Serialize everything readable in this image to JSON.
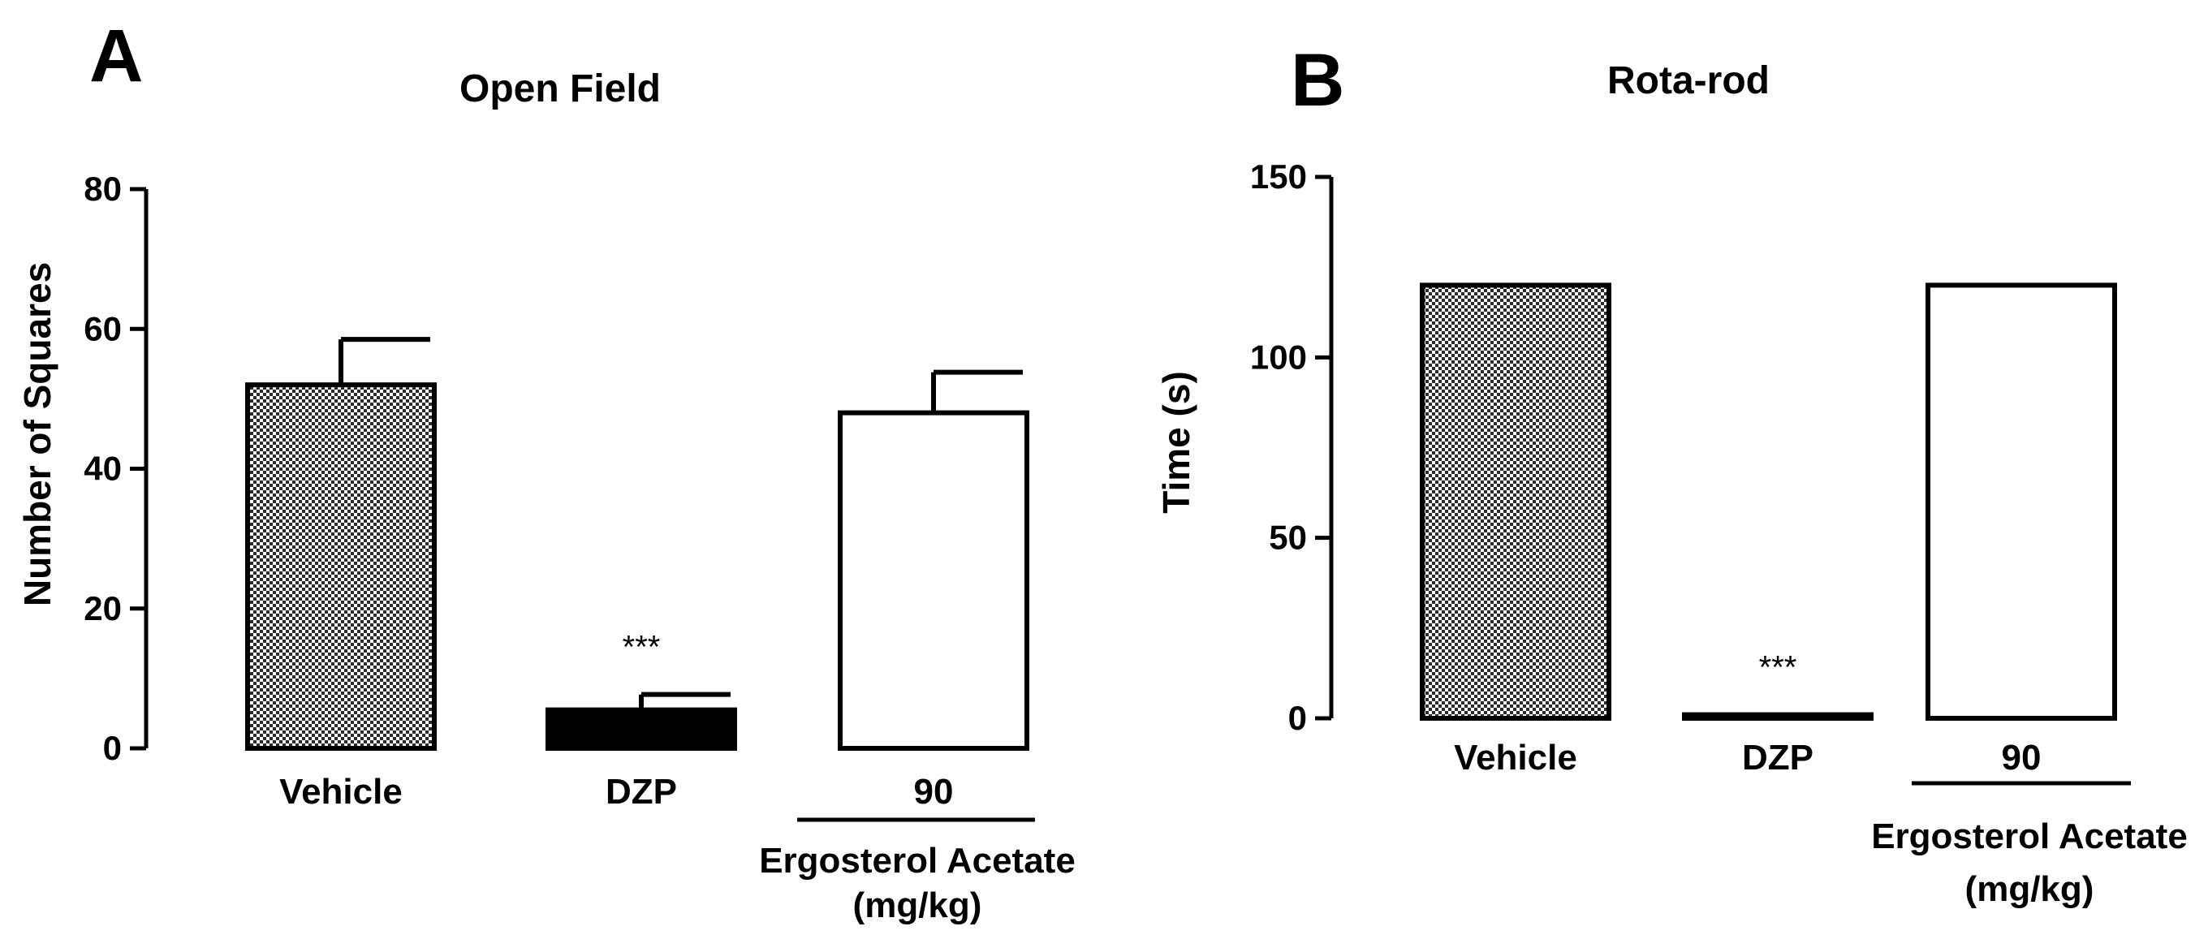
{
  "chart_data": [
    {
      "panel": "A",
      "type": "bar",
      "title": "Open Field",
      "ylabel": "Number of Squares",
      "xlabel": "",
      "ylim": [
        0,
        80
      ],
      "yticks": [
        0,
        20,
        40,
        60,
        80
      ],
      "categories": [
        "Vehicle",
        "DZP",
        "90"
      ],
      "values": [
        52,
        5.5,
        48
      ],
      "errors": [
        6.5,
        2.2,
        5.8
      ],
      "fills": [
        "checkered",
        "solid-black",
        "white"
      ],
      "significance": [
        "",
        "***",
        ""
      ],
      "group_label": {
        "line1": "Ergosterol Acetate",
        "line2": "(mg/kg)"
      },
      "grid": false,
      "legend": "none"
    },
    {
      "panel": "B",
      "type": "bar",
      "title": "Rota-rod",
      "ylabel": "Time (s)",
      "xlabel": "",
      "ylim": [
        0,
        150
      ],
      "yticks": [
        0,
        50,
        100,
        150
      ],
      "categories": [
        "Vehicle",
        "DZP",
        "90"
      ],
      "values": [
        120,
        1,
        120
      ],
      "errors": [
        0,
        0,
        0
      ],
      "fills": [
        "checkered",
        "solid-black",
        "white"
      ],
      "significance": [
        "",
        "***",
        ""
      ],
      "group_label": {
        "line1": "Ergosterol Acetate",
        "line2": "(mg/kg)"
      },
      "grid": false,
      "legend": "none"
    }
  ]
}
